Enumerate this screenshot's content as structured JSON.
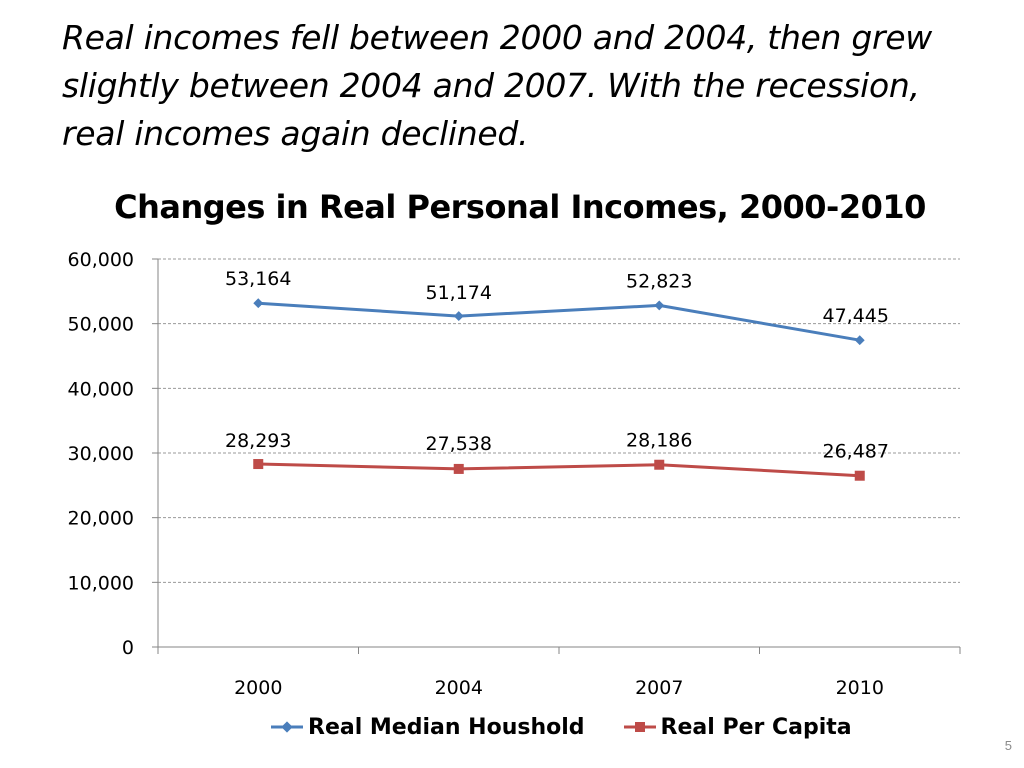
{
  "headline": {
    "line1": "Real incomes fell between 2000 and 2004, then grew",
    "line2": "slightly between 2004 and 2007.  With the recession,",
    "line3": "real incomes again declined."
  },
  "page_number": "5",
  "chart_data": {
    "type": "line",
    "title": "Changes in Real Personal Incomes, 2000-2010",
    "categories": [
      "2000",
      "2004",
      "2007",
      "2010"
    ],
    "series": [
      {
        "name": "Real Median Houshold",
        "values": [
          53164,
          51174,
          52823,
          47445
        ],
        "labels": [
          "53,164",
          "51,174",
          "52,823",
          "47,445"
        ],
        "color": "#4A7EBB",
        "marker": "diamond"
      },
      {
        "name": "Real Per Capita",
        "values": [
          28293,
          27538,
          28186,
          26487
        ],
        "labels": [
          "28,293",
          "27,538",
          "28,186",
          "26,487"
        ],
        "color": "#BE4B48",
        "marker": "square"
      }
    ],
    "yticks": [
      "0",
      "10,000",
      "20,000",
      "30,000",
      "40,000",
      "50,000",
      "60,000"
    ],
    "ytick_values": [
      0,
      10000,
      20000,
      30000,
      40000,
      50000,
      60000
    ],
    "ylim": [
      0,
      60000
    ],
    "xlabel": "",
    "ylabel": "",
    "grid": true,
    "legend_position": "bottom"
  }
}
